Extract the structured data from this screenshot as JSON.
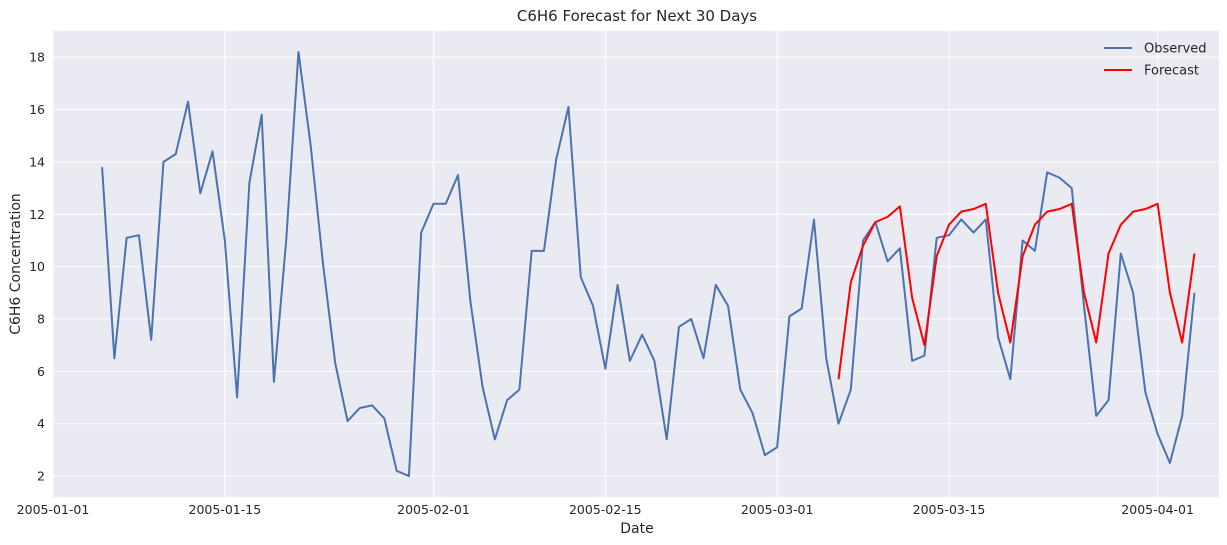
{
  "chart_data": {
    "type": "line",
    "title": "C6H6 Forecast for Next 30 Days",
    "xlabel": "Date",
    "ylabel": "C6H6 Concentration",
    "xlim": [
      "2005-01-01",
      "2005-04-06"
    ],
    "ylim": [
      1.2,
      19
    ],
    "x_ticks": [
      "2005-01-01",
      "2005-01-15",
      "2005-02-01",
      "2005-02-15",
      "2005-03-01",
      "2005-03-15",
      "2005-04-01"
    ],
    "y_ticks": [
      2,
      4,
      6,
      8,
      10,
      12,
      14,
      16,
      18
    ],
    "grid": true,
    "legend": "top-right",
    "background": "#eaeaf2",
    "series": [
      {
        "name": "Observed",
        "color": "#4c72b0",
        "points": [
          [
            "2005-01-05",
            13.8
          ],
          [
            "2005-01-06",
            6.5
          ],
          [
            "2005-01-07",
            11.1
          ],
          [
            "2005-01-08",
            11.2
          ],
          [
            "2005-01-09",
            7.2
          ],
          [
            "2005-01-10",
            14.0
          ],
          [
            "2005-01-11",
            14.3
          ],
          [
            "2005-01-12",
            16.3
          ],
          [
            "2005-01-13",
            12.8
          ],
          [
            "2005-01-14",
            14.4
          ],
          [
            "2005-01-15",
            11.0
          ],
          [
            "2005-01-16",
            5.0
          ],
          [
            "2005-01-17",
            13.2
          ],
          [
            "2005-01-18",
            15.8
          ],
          [
            "2005-01-19",
            5.6
          ],
          [
            "2005-01-20",
            11.0
          ],
          [
            "2005-01-21",
            18.2
          ],
          [
            "2005-01-22",
            14.6
          ],
          [
            "2005-01-23",
            10.1
          ],
          [
            "2005-01-24",
            6.3
          ],
          [
            "2005-01-25",
            4.1
          ],
          [
            "2005-01-26",
            4.6
          ],
          [
            "2005-01-27",
            4.7
          ],
          [
            "2005-01-28",
            4.2
          ],
          [
            "2005-01-29",
            2.2
          ],
          [
            "2005-01-30",
            2.0
          ],
          [
            "2005-01-31",
            11.3
          ],
          [
            "2005-02-01",
            12.4
          ],
          [
            "2005-02-02",
            12.4
          ],
          [
            "2005-02-03",
            13.5
          ],
          [
            "2005-02-04",
            8.7
          ],
          [
            "2005-02-05",
            5.4
          ],
          [
            "2005-02-06",
            3.4
          ],
          [
            "2005-02-07",
            4.9
          ],
          [
            "2005-02-08",
            5.3
          ],
          [
            "2005-02-09",
            10.6
          ],
          [
            "2005-02-10",
            10.6
          ],
          [
            "2005-02-11",
            14.1
          ],
          [
            "2005-02-12",
            16.1
          ],
          [
            "2005-02-13",
            9.6
          ],
          [
            "2005-02-14",
            8.5
          ],
          [
            "2005-02-15",
            6.1
          ],
          [
            "2005-02-16",
            9.3
          ],
          [
            "2005-02-17",
            6.4
          ],
          [
            "2005-02-18",
            7.4
          ],
          [
            "2005-02-19",
            6.4
          ],
          [
            "2005-02-20",
            3.4
          ],
          [
            "2005-02-21",
            7.7
          ],
          [
            "2005-02-22",
            8.0
          ],
          [
            "2005-02-23",
            6.5
          ],
          [
            "2005-02-24",
            9.3
          ],
          [
            "2005-02-25",
            8.5
          ],
          [
            "2005-02-26",
            5.3
          ],
          [
            "2005-02-27",
            4.4
          ],
          [
            "2005-02-28",
            2.8
          ],
          [
            "2005-03-01",
            3.1
          ],
          [
            "2005-03-02",
            8.1
          ],
          [
            "2005-03-03",
            8.4
          ],
          [
            "2005-03-04",
            11.8
          ],
          [
            "2005-03-05",
            6.5
          ],
          [
            "2005-03-06",
            4.0
          ],
          [
            "2005-03-07",
            5.3
          ],
          [
            "2005-03-08",
            11.0
          ],
          [
            "2005-03-09",
            11.7
          ],
          [
            "2005-03-10",
            10.2
          ],
          [
            "2005-03-11",
            10.7
          ],
          [
            "2005-03-12",
            6.4
          ],
          [
            "2005-03-13",
            6.6
          ],
          [
            "2005-03-14",
            11.1
          ],
          [
            "2005-03-15",
            11.2
          ],
          [
            "2005-03-16",
            11.8
          ],
          [
            "2005-03-17",
            11.3
          ],
          [
            "2005-03-18",
            11.8
          ],
          [
            "2005-03-19",
            7.3
          ],
          [
            "2005-03-20",
            5.7
          ],
          [
            "2005-03-21",
            11.0
          ],
          [
            "2005-03-22",
            10.6
          ],
          [
            "2005-03-23",
            13.6
          ],
          [
            "2005-03-24",
            13.4
          ],
          [
            "2005-03-25",
            13.0
          ],
          [
            "2005-03-26",
            8.5
          ],
          [
            "2005-03-27",
            4.3
          ],
          [
            "2005-03-28",
            4.9
          ],
          [
            "2005-03-29",
            10.5
          ],
          [
            "2005-03-30",
            9.0
          ],
          [
            "2005-03-31",
            5.2
          ],
          [
            "2005-04-01",
            3.6
          ],
          [
            "2005-04-02",
            2.5
          ],
          [
            "2005-04-03",
            4.3
          ],
          [
            "2005-04-04",
            9.0
          ]
        ]
      },
      {
        "name": "Forecast",
        "color": "#ff0000",
        "points": [
          [
            "2005-03-06",
            5.7
          ],
          [
            "2005-03-07",
            9.4
          ],
          [
            "2005-03-08",
            10.8
          ],
          [
            "2005-03-09",
            11.7
          ],
          [
            "2005-03-10",
            11.9
          ],
          [
            "2005-03-11",
            12.3
          ],
          [
            "2005-03-12",
            8.8
          ],
          [
            "2005-03-13",
            7.0
          ],
          [
            "2005-03-14",
            10.4
          ],
          [
            "2005-03-15",
            11.6
          ],
          [
            "2005-03-16",
            12.1
          ],
          [
            "2005-03-17",
            12.2
          ],
          [
            "2005-03-18",
            12.4
          ],
          [
            "2005-03-19",
            9.0
          ],
          [
            "2005-03-20",
            7.1
          ],
          [
            "2005-03-21",
            10.4
          ],
          [
            "2005-03-22",
            11.6
          ],
          [
            "2005-03-23",
            12.1
          ],
          [
            "2005-03-24",
            12.2
          ],
          [
            "2005-03-25",
            12.4
          ],
          [
            "2005-03-26",
            9.0
          ],
          [
            "2005-03-27",
            7.1
          ],
          [
            "2005-03-28",
            10.5
          ],
          [
            "2005-03-29",
            11.6
          ],
          [
            "2005-03-30",
            12.1
          ],
          [
            "2005-03-31",
            12.2
          ],
          [
            "2005-04-01",
            12.4
          ],
          [
            "2005-04-02",
            9.0
          ],
          [
            "2005-04-03",
            7.1
          ],
          [
            "2005-04-04",
            10.5
          ]
        ]
      }
    ]
  }
}
